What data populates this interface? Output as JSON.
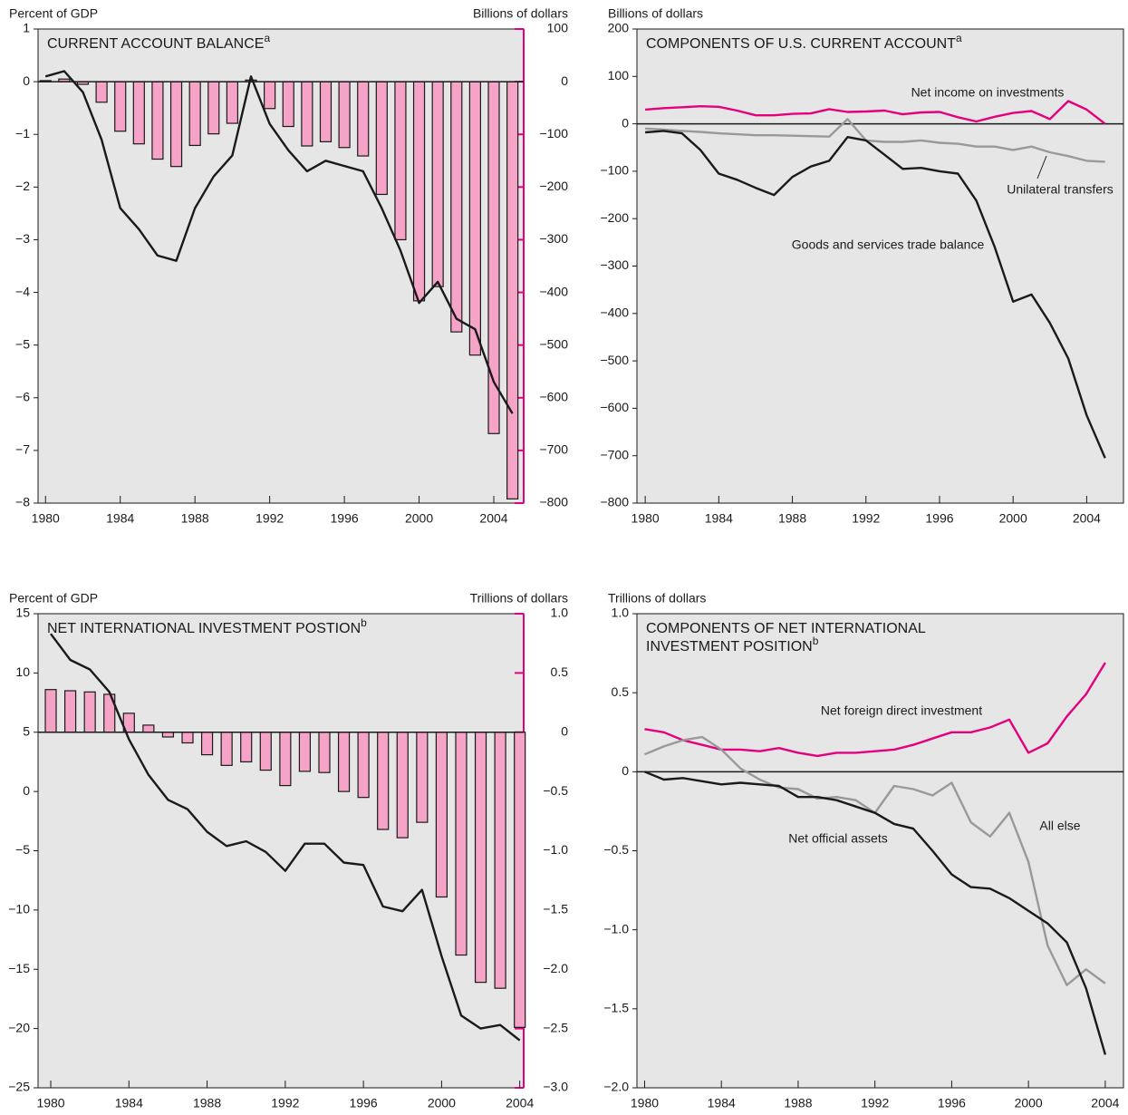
{
  "chart_data": [
    {
      "type": "bar",
      "title": "CURRENT ACCOUNT BALANCE",
      "title_note": "a",
      "ylabel": "Percent of GDP",
      "y2label": "Billions of dollars",
      "x": [
        1980,
        1981,
        1982,
        1983,
        1984,
        1985,
        1986,
        1987,
        1988,
        1989,
        1990,
        1991,
        1992,
        1993,
        1994,
        1995,
        1996,
        1997,
        1998,
        1999,
        2000,
        2001,
        2002,
        2003,
        2004,
        2005
      ],
      "xlim": [
        1979.6,
        2005.6
      ],
      "xticks": [
        1980,
        1984,
        1988,
        1992,
        1996,
        2000,
        2004
      ],
      "ylim": [
        -8,
        1
      ],
      "yticks": [
        1,
        0,
        {
          "value": -1,
          "label": "−1"
        },
        {
          "value": -2,
          "label": "−2"
        },
        {
          "value": -3,
          "label": "−3"
        },
        {
          "value": -4,
          "label": "−4"
        },
        {
          "value": -5,
          "label": "−5"
        },
        {
          "value": -6,
          "label": "−6"
        },
        {
          "value": -7,
          "label": "−7"
        },
        {
          "value": -8,
          "label": "−8"
        }
      ],
      "y2lim": [
        -800,
        100
      ],
      "y2ticks": [
        100,
        0,
        {
          "value": -100,
          "label": "−100"
        },
        {
          "value": -200,
          "label": "−200"
        },
        {
          "value": -300,
          "label": "−300"
        },
        {
          "value": -400,
          "label": "−400"
        },
        {
          "value": -500,
          "label": "−500"
        },
        {
          "value": -600,
          "label": "−600"
        },
        {
          "value": -700,
          "label": "−700"
        },
        {
          "value": -800,
          "label": "−800"
        }
      ],
      "y2color": "#e5007d",
      "zero_line": true,
      "series": [
        {
          "type": "bar",
          "axis": "y2",
          "color": "#f5a3c7",
          "values": [
            2,
            5,
            -5,
            -39,
            -94,
            -118,
            -147,
            -161,
            -121,
            -99,
            -79,
            3,
            -51,
            -85,
            -122,
            -114,
            -125,
            -141,
            -214,
            -300,
            -416,
            -389,
            -475,
            -519,
            -668,
            -792
          ]
        },
        {
          "type": "line",
          "color": "#1a1a1a",
          "values": [
            0.1,
            0.2,
            -0.2,
            -1.1,
            -2.4,
            -2.8,
            -3.3,
            -3.4,
            -2.4,
            -1.8,
            -1.4,
            0.1,
            -0.8,
            -1.3,
            -1.7,
            -1.5,
            -1.6,
            -1.7,
            -2.4,
            -3.2,
            -4.2,
            -3.8,
            -4.5,
            -4.7,
            -5.7,
            -6.3
          ]
        }
      ]
    },
    {
      "type": "line",
      "title": "COMPONENTS OF U.S. CURRENT ACCOUNT",
      "title_note": "a",
      "ylabel": "Billions of dollars",
      "x": [
        1980,
        1981,
        1982,
        1983,
        1984,
        1985,
        1986,
        1987,
        1988,
        1989,
        1990,
        1991,
        1992,
        1993,
        1994,
        1995,
        1996,
        1997,
        1998,
        1999,
        2000,
        2001,
        2002,
        2003,
        2004,
        2005
      ],
      "xlim": [
        1979.55,
        2006
      ],
      "xticks": [
        1980,
        1984,
        1988,
        1992,
        1996,
        2000,
        2004
      ],
      "ylim": [
        -800,
        200
      ],
      "yticks": [
        200,
        100,
        0,
        {
          "value": -100,
          "label": "−100"
        },
        {
          "value": -200,
          "label": "−200"
        },
        {
          "value": -300,
          "label": "−300"
        },
        {
          "value": -400,
          "label": "−400"
        },
        {
          "value": -500,
          "label": "−500"
        },
        {
          "value": -600,
          "label": "−600"
        },
        {
          "value": -700,
          "label": "−700"
        },
        {
          "value": -800,
          "label": "−800"
        }
      ],
      "zero_line": true,
      "series": [
        {
          "type": "line",
          "color": "#e5007d",
          "values": [
            30,
            33,
            35,
            37,
            36,
            28,
            18,
            18,
            21,
            22,
            31,
            25,
            26,
            28,
            20,
            24,
            25,
            14,
            5,
            15,
            23,
            27,
            10,
            48,
            30,
            0
          ]
        },
        {
          "type": "line",
          "color": "#999999",
          "values": [
            -10,
            -12,
            -15,
            -17,
            -20,
            -22,
            -24,
            -24,
            -25,
            -26,
            -27,
            10,
            -35,
            -38,
            -38,
            -35,
            -40,
            -42,
            -48,
            -48,
            -55,
            -48,
            -60,
            -68,
            -78,
            -80
          ]
        },
        {
          "type": "line",
          "color": "#1a1a1a",
          "values": [
            -18,
            -15,
            -20,
            -55,
            -105,
            -118,
            -135,
            -150,
            -112,
            -90,
            -78,
            -28,
            -35,
            -65,
            -95,
            -93,
            -100,
            -105,
            -162,
            -260,
            -375,
            -360,
            -420,
            -495,
            -615,
            -705
          ]
        }
      ],
      "annotations": [
        {
          "text": "Net income on investments",
          "color": "#e5007d"
        },
        {
          "text": "Unilateral transfers",
          "color": "#1a1a1a"
        },
        {
          "text": "Goods and services trade balance",
          "color": "#1a1a1a"
        }
      ]
    },
    {
      "type": "bar",
      "title": "NET INTERNATIONAL INVESTMENT POSTION",
      "title_note": "b",
      "ylabel": "Percent of GDP",
      "y2label": "Trillions of dollars",
      "x": [
        1980,
        1981,
        1982,
        1983,
        1984,
        1985,
        1986,
        1987,
        1988,
        1989,
        1990,
        1991,
        1992,
        1993,
        1994,
        1995,
        1996,
        1997,
        1998,
        1999,
        2000,
        2001,
        2002,
        2003,
        2004
      ],
      "xlim": [
        1979.35,
        2004.2
      ],
      "xticks": [
        1980,
        1984,
        1988,
        1992,
        1996,
        2000,
        2004
      ],
      "ylim": [
        -25,
        15
      ],
      "yticks": [
        15,
        10,
        5,
        0,
        {
          "value": -5,
          "label": "−5"
        },
        {
          "value": -10,
          "label": "−10"
        },
        {
          "value": -15,
          "label": "−15"
        },
        {
          "value": -20,
          "label": "−20"
        },
        {
          "value": -25,
          "label": "−25"
        }
      ],
      "y2lim": [
        -3,
        1
      ],
      "y2ticks": [
        {
          "value": 1,
          "label": "1.0"
        },
        0.5,
        0,
        {
          "value": -0.5,
          "label": "−0.5"
        },
        {
          "value": -1,
          "label": "−1.0"
        },
        {
          "value": -1.5,
          "label": "−1.5"
        },
        {
          "value": -2,
          "label": "−2.0"
        },
        {
          "value": -2.5,
          "label": "−2.5"
        },
        {
          "value": -3,
          "label": "−3.0"
        }
      ],
      "y2color": "#e5007d",
      "zero_line": true,
      "series": [
        {
          "type": "bar",
          "axis": "y2",
          "color": "#f5a3c7",
          "values": [
            0.36,
            0.35,
            0.34,
            0.32,
            0.16,
            0.06,
            -0.04,
            -0.09,
            -0.19,
            -0.28,
            -0.25,
            -0.32,
            -0.45,
            -0.33,
            -0.34,
            -0.5,
            -0.55,
            -0.82,
            -0.89,
            -0.76,
            -1.39,
            -1.88,
            -2.11,
            -2.16,
            -2.49
          ]
        },
        {
          "type": "line",
          "color": "#1a1a1a",
          "values": [
            13.3,
            11.1,
            10.3,
            8.4,
            4.4,
            1.4,
            -0.7,
            -1.5,
            -3.4,
            -4.6,
            -4.2,
            -5.1,
            -6.7,
            -4.4,
            -4.4,
            -6.0,
            -6.2,
            -9.7,
            -10.1,
            -8.3,
            -13.9,
            -18.9,
            -20.0,
            -19.7,
            -21.0
          ]
        }
      ]
    },
    {
      "type": "line",
      "title": [
        "COMPONENTS OF NET INTERNATIONAL",
        "INVESTMENT POSITION"
      ],
      "title_note": "b",
      "ylabel": "Trillions of dollars",
      "x": [
        1980,
        1981,
        1982,
        1983,
        1984,
        1985,
        1986,
        1987,
        1988,
        1989,
        1990,
        1991,
        1992,
        1993,
        1994,
        1995,
        1996,
        1997,
        1998,
        1999,
        2000,
        2001,
        2002,
        2003,
        2004
      ],
      "xlim": [
        1979.6,
        2004.95
      ],
      "xticks": [
        1980,
        1984,
        1988,
        1992,
        1996,
        2000,
        2004
      ],
      "ylim": [
        -2,
        1
      ],
      "yticks": [
        {
          "value": 1,
          "label": "1.0"
        },
        0.5,
        0,
        {
          "value": -0.5,
          "label": "−0.5"
        },
        {
          "value": -1,
          "label": "−1.0"
        },
        {
          "value": -1.5,
          "label": "−1.5"
        },
        {
          "value": -2,
          "label": "−2.0"
        }
      ],
      "zero_line": true,
      "series": [
        {
          "type": "line",
          "color": "#e5007d",
          "values": [
            0.27,
            0.25,
            0.2,
            0.17,
            0.14,
            0.14,
            0.13,
            0.15,
            0.12,
            0.1,
            0.12,
            0.12,
            0.13,
            0.14,
            0.17,
            0.21,
            0.25,
            0.25,
            0.28,
            0.33,
            0.12,
            0.18,
            0.35,
            0.49,
            0.69
          ]
        },
        {
          "type": "line",
          "color": "#999999",
          "values": [
            0.11,
            0.16,
            0.2,
            0.22,
            0.14,
            0.02,
            -0.05,
            -0.1,
            -0.11,
            -0.17,
            -0.16,
            -0.18,
            -0.26,
            -0.09,
            -0.11,
            -0.15,
            -0.07,
            -0.32,
            -0.41,
            -0.26,
            -0.57,
            -1.1,
            -1.35,
            -1.25,
            -1.34
          ]
        },
        {
          "type": "line",
          "color": "#1a1a1a",
          "values": [
            0,
            -0.05,
            -0.04,
            -0.06,
            -0.08,
            -0.07,
            -0.08,
            -0.09,
            -0.16,
            -0.16,
            -0.18,
            -0.22,
            -0.26,
            -0.33,
            -0.36,
            -0.5,
            -0.65,
            -0.73,
            -0.74,
            -0.8,
            -0.88,
            -0.96,
            -1.08,
            -1.37,
            -1.79
          ]
        }
      ],
      "annotations": [
        {
          "text": "Net foreign direct investment",
          "color": "#e5007d"
        },
        {
          "text": "All else",
          "color": "#1a1a1a"
        },
        {
          "text": "Net official assets",
          "color": "#1a1a1a"
        }
      ]
    }
  ]
}
